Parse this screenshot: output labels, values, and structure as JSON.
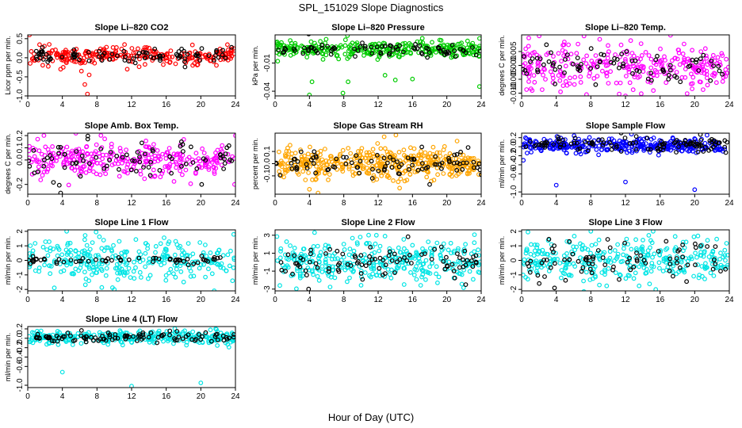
{
  "figure": {
    "title": "SPL_151029  Slope Diagnostics",
    "xlabel": "Hour of Day (UTC)"
  },
  "chart_data": [
    {
      "type": "scatter",
      "title": "Slope Li–820 CO2",
      "ylabel": "Licor ppm per min.",
      "xlim": [
        0,
        24
      ],
      "ylim": [
        -1.0,
        0.6
      ],
      "xticks": [
        "0",
        "4",
        "8",
        "12",
        "16",
        "20",
        "24"
      ],
      "yticks": [
        {
          "v": -1.0,
          "label": "-1.0"
        },
        {
          "v": -0.5,
          "label": "-0.5"
        },
        {
          "v": 0.0,
          "label": "0.0"
        },
        {
          "v": 0.5,
          "label": "0.5"
        }
      ],
      "series": [
        {
          "color": "#ff0000",
          "n": 260,
          "center": 0.05,
          "spread": 0.11,
          "outliers": [
            [
              0.2,
              0.6
            ],
            [
              6.6,
              -0.7
            ],
            [
              6.9,
              -0.95
            ],
            [
              7.1,
              -0.45
            ],
            [
              6.2,
              -0.35
            ],
            [
              3.8,
              -0.3
            ],
            [
              4.1,
              -0.25
            ],
            [
              11.5,
              -0.3
            ],
            [
              21.8,
              -0.2
            ]
          ]
        },
        {
          "color": "#000000",
          "n": 90,
          "center": 0.05,
          "spread": 0.1,
          "outliers": []
        }
      ]
    },
    {
      "type": "scatter",
      "title": "Slope Li–820 Pressure",
      "ylabel": "kPa per min.",
      "xlim": [
        0,
        24
      ],
      "ylim": [
        -0.045,
        0.02
      ],
      "xticks": [
        "0",
        "4",
        "8",
        "12",
        "16",
        "20",
        "24"
      ],
      "yticks": [
        {
          "v": -0.04,
          "label": "-0.04"
        },
        {
          "v": -0.01,
          "label": "-0.01"
        }
      ],
      "series": [
        {
          "color": "#00cc00",
          "n": 320,
          "center": 0.0045,
          "spread": 0.004,
          "outliers": [
            [
              0.3,
              -0.008
            ],
            [
              4.0,
              -0.044
            ],
            [
              7.9,
              -0.042
            ],
            [
              4.3,
              -0.03
            ],
            [
              8.5,
              -0.03
            ],
            [
              14.0,
              -0.028
            ],
            [
              16.0,
              -0.027
            ],
            [
              23.8,
              -0.035
            ],
            [
              12.8,
              -0.023
            ]
          ]
        },
        {
          "color": "#000000",
          "n": 80,
          "center": 0.004,
          "spread": 0.004,
          "outliers": []
        }
      ]
    },
    {
      "type": "scatter",
      "title": "Slope Li–820 Temp.",
      "ylabel": "degrees C per min.",
      "xlim": [
        0,
        24
      ],
      "ylim": [
        -0.011,
        0.011
      ],
      "xticks": [
        "0",
        "4",
        "8",
        "12",
        "16",
        "20",
        "24"
      ],
      "yticks": [
        {
          "v": -0.01,
          "label": "-0.010"
        },
        {
          "v": -0.005,
          "label": "-0.005"
        },
        {
          "v": 0.0,
          "label": "0.000"
        },
        {
          "v": 0.005,
          "label": "0.005"
        }
      ],
      "series": [
        {
          "color": "#ff00ff",
          "n": 300,
          "center": 0.0,
          "spread": 0.004,
          "outliers": [
            [
              12.0,
              -0.011
            ],
            [
              7.5,
              -0.0105
            ],
            [
              4.5,
              -0.0095
            ]
          ]
        },
        {
          "color": "#000000",
          "n": 80,
          "center": 0.0,
          "spread": 0.003,
          "outliers": []
        }
      ]
    },
    {
      "type": "scatter",
      "title": "Slope Amb. Box Temp.",
      "ylabel": "degrees C per min.",
      "xlim": [
        0,
        24
      ],
      "ylim": [
        -0.28,
        0.22
      ],
      "xticks": [
        "0",
        "4",
        "8",
        "12",
        "16",
        "20",
        "24"
      ],
      "yticks": [
        {
          "v": -0.2,
          "label": "-0.2"
        },
        {
          "v": 0.0,
          "label": "0.0"
        },
        {
          "v": 0.1,
          "label": "0.1"
        },
        {
          "v": 0.2,
          "label": "0.2"
        }
      ],
      "series": [
        {
          "color": "#ff00ff",
          "n": 300,
          "center": 0.0,
          "spread": 0.075,
          "outliers": [
            [
              24.0,
              0.2
            ],
            [
              23.9,
              -0.2
            ]
          ]
        },
        {
          "color": "#000000",
          "n": 80,
          "center": 0.0,
          "spread": 0.07,
          "outliers": [
            [
              3.8,
              -0.27
            ],
            [
              20.1,
              -0.2
            ]
          ]
        }
      ]
    },
    {
      "type": "scatter",
      "title": "Slope Gas Stream RH",
      "ylabel": "percent per min.",
      "xlim": [
        0,
        24
      ],
      "ylim": [
        -0.25,
        0.25
      ],
      "xticks": [
        "0",
        "4",
        "8",
        "12",
        "16",
        "20",
        "24"
      ],
      "yticks": [
        {
          "v": -0.1,
          "label": "-0.1"
        },
        {
          "v": 0.0,
          "label": "0.0"
        },
        {
          "v": 0.1,
          "label": "0.1"
        }
      ],
      "series": [
        {
          "color": "#ffa500",
          "n": 420,
          "center": 0.0,
          "spread": 0.06,
          "outliers": [
            [
              5.0,
              -0.24
            ],
            [
              4.0,
              -0.21
            ],
            [
              14.5,
              -0.2
            ],
            [
              12.7,
              0.22
            ]
          ]
        },
        {
          "color": "#000000",
          "n": 90,
          "center": 0.0,
          "spread": 0.05,
          "outliers": [
            [
              18.0,
              -0.17
            ],
            [
              24.0,
              -0.09
            ]
          ]
        }
      ]
    },
    {
      "type": "scatter",
      "title": "Slope Sample Flow",
      "ylabel": "ml/min per min.",
      "xlim": [
        0,
        24
      ],
      "ylim": [
        -1.05,
        0.3
      ],
      "xticks": [
        "0",
        "4",
        "8",
        "12",
        "16",
        "20",
        "24"
      ],
      "yticks": [
        {
          "v": -1.0,
          "label": "-1.0"
        },
        {
          "v": -0.6,
          "label": "-0.6"
        },
        {
          "v": -0.4,
          "label": "-0.4"
        },
        {
          "v": -0.2,
          "label": "-0.2"
        },
        {
          "v": 0.0,
          "label": "0.0"
        },
        {
          "v": 0.2,
          "label": "0.2"
        }
      ],
      "series": [
        {
          "color": "#0000ff",
          "n": 330,
          "center": 0.02,
          "spread": 0.08,
          "outliers": [
            [
              4.0,
              -0.85
            ],
            [
              12.0,
              -0.78
            ],
            [
              20.0,
              -0.95
            ],
            [
              0.2,
              -0.3
            ]
          ]
        },
        {
          "color": "#000000",
          "n": 110,
          "center": 0.05,
          "spread": 0.08,
          "outliers": []
        }
      ]
    },
    {
      "type": "scatter",
      "title": "Slope Line 1 Flow",
      "ylabel": "ml/min per min.",
      "xlim": [
        0,
        24
      ],
      "ylim": [
        -2.1,
        2.1
      ],
      "xticks": [
        "0",
        "4",
        "8",
        "12",
        "16",
        "20",
        "24"
      ],
      "yticks": [
        {
          "v": -2,
          "label": "-2"
        },
        {
          "v": -1,
          "label": "-1"
        },
        {
          "v": 0,
          "label": "0"
        },
        {
          "v": 1,
          "label": "1"
        },
        {
          "v": 2,
          "label": "2"
        }
      ],
      "series": [
        {
          "color": "#00e5e5",
          "n": 300,
          "center": 0.0,
          "spread": 0.75,
          "outliers": [
            [
              4.5,
              2.0
            ],
            [
              7.9,
              1.95
            ],
            [
              10.0,
              -2.0
            ]
          ]
        },
        {
          "color": "#000000",
          "n": 60,
          "center": 0.0,
          "spread": 0.12,
          "outliers": []
        }
      ]
    },
    {
      "type": "scatter",
      "title": "Slope Line 2 Flow",
      "ylabel": "ml/min per min.",
      "xlim": [
        0,
        24
      ],
      "ylim": [
        -3.2,
        3.6
      ],
      "xticks": [
        "0",
        "4",
        "8",
        "12",
        "16",
        "20",
        "24"
      ],
      "yticks": [
        {
          "v": -3,
          "label": "-3"
        },
        {
          "v": -1,
          "label": "-1"
        },
        {
          "v": 1,
          "label": "1"
        },
        {
          "v": 3,
          "label": "3"
        }
      ],
      "series": [
        {
          "color": "#00e5e5",
          "n": 340,
          "center": 0.0,
          "spread": 1.1,
          "outliers": [
            [
              4.6,
              3.3
            ],
            [
              11.8,
              3.0
            ],
            [
              12.8,
              2.9
            ]
          ]
        },
        {
          "color": "#000000",
          "n": 90,
          "center": 0.0,
          "spread": 0.9,
          "outliers": [
            [
              3.9,
              -3.0
            ],
            [
              22.2,
              -2.5
            ]
          ]
        }
      ]
    },
    {
      "type": "scatter",
      "title": "Slope Line 3 Flow",
      "ylabel": "ml/min per min.",
      "xlim": [
        0,
        24
      ],
      "ylim": [
        -2.1,
        2.1
      ],
      "xticks": [
        "0",
        "4",
        "8",
        "12",
        "16",
        "20",
        "24"
      ],
      "yticks": [
        {
          "v": -2,
          "label": "-2"
        },
        {
          "v": -1,
          "label": "-1"
        },
        {
          "v": 0,
          "label": "0"
        },
        {
          "v": 1,
          "label": "1"
        },
        {
          "v": 2,
          "label": "2"
        }
      ],
      "series": [
        {
          "color": "#00e5e5",
          "n": 320,
          "center": 0.0,
          "spread": 0.7,
          "outliers": [
            [
              8.0,
              2.0
            ],
            [
              15.2,
              2.0
            ],
            [
              15.5,
              -2.0
            ]
          ]
        },
        {
          "color": "#000000",
          "n": 80,
          "center": 0.0,
          "spread": 0.6,
          "outliers": [
            [
              3.8,
              -1.9
            ]
          ]
        }
      ]
    },
    {
      "type": "scatter",
      "title": "Slope Line 4 (LT) Flow",
      "ylabel": "ml/min per min.",
      "xlim": [
        0,
        24
      ],
      "ylim": [
        -1.05,
        0.25
      ],
      "xticks": [
        "0",
        "4",
        "8",
        "12",
        "16",
        "20",
        "24"
      ],
      "yticks": [
        {
          "v": -1.0,
          "label": "-1.0"
        },
        {
          "v": -0.6,
          "label": "-0.6"
        },
        {
          "v": -0.4,
          "label": "-0.4"
        },
        {
          "v": -0.2,
          "label": "-0.2"
        },
        {
          "v": 0.0,
          "label": "0.0"
        },
        {
          "v": 0.2,
          "label": "0.2"
        }
      ],
      "series": [
        {
          "color": "#00e5e5",
          "n": 330,
          "center": 0.02,
          "spread": 0.07,
          "outliers": [
            [
              4.0,
              -0.72
            ],
            [
              12.0,
              -1.02
            ],
            [
              20.0,
              -0.95
            ]
          ]
        },
        {
          "color": "#000000",
          "n": 100,
          "center": 0.02,
          "spread": 0.06,
          "outliers": []
        }
      ]
    }
  ]
}
